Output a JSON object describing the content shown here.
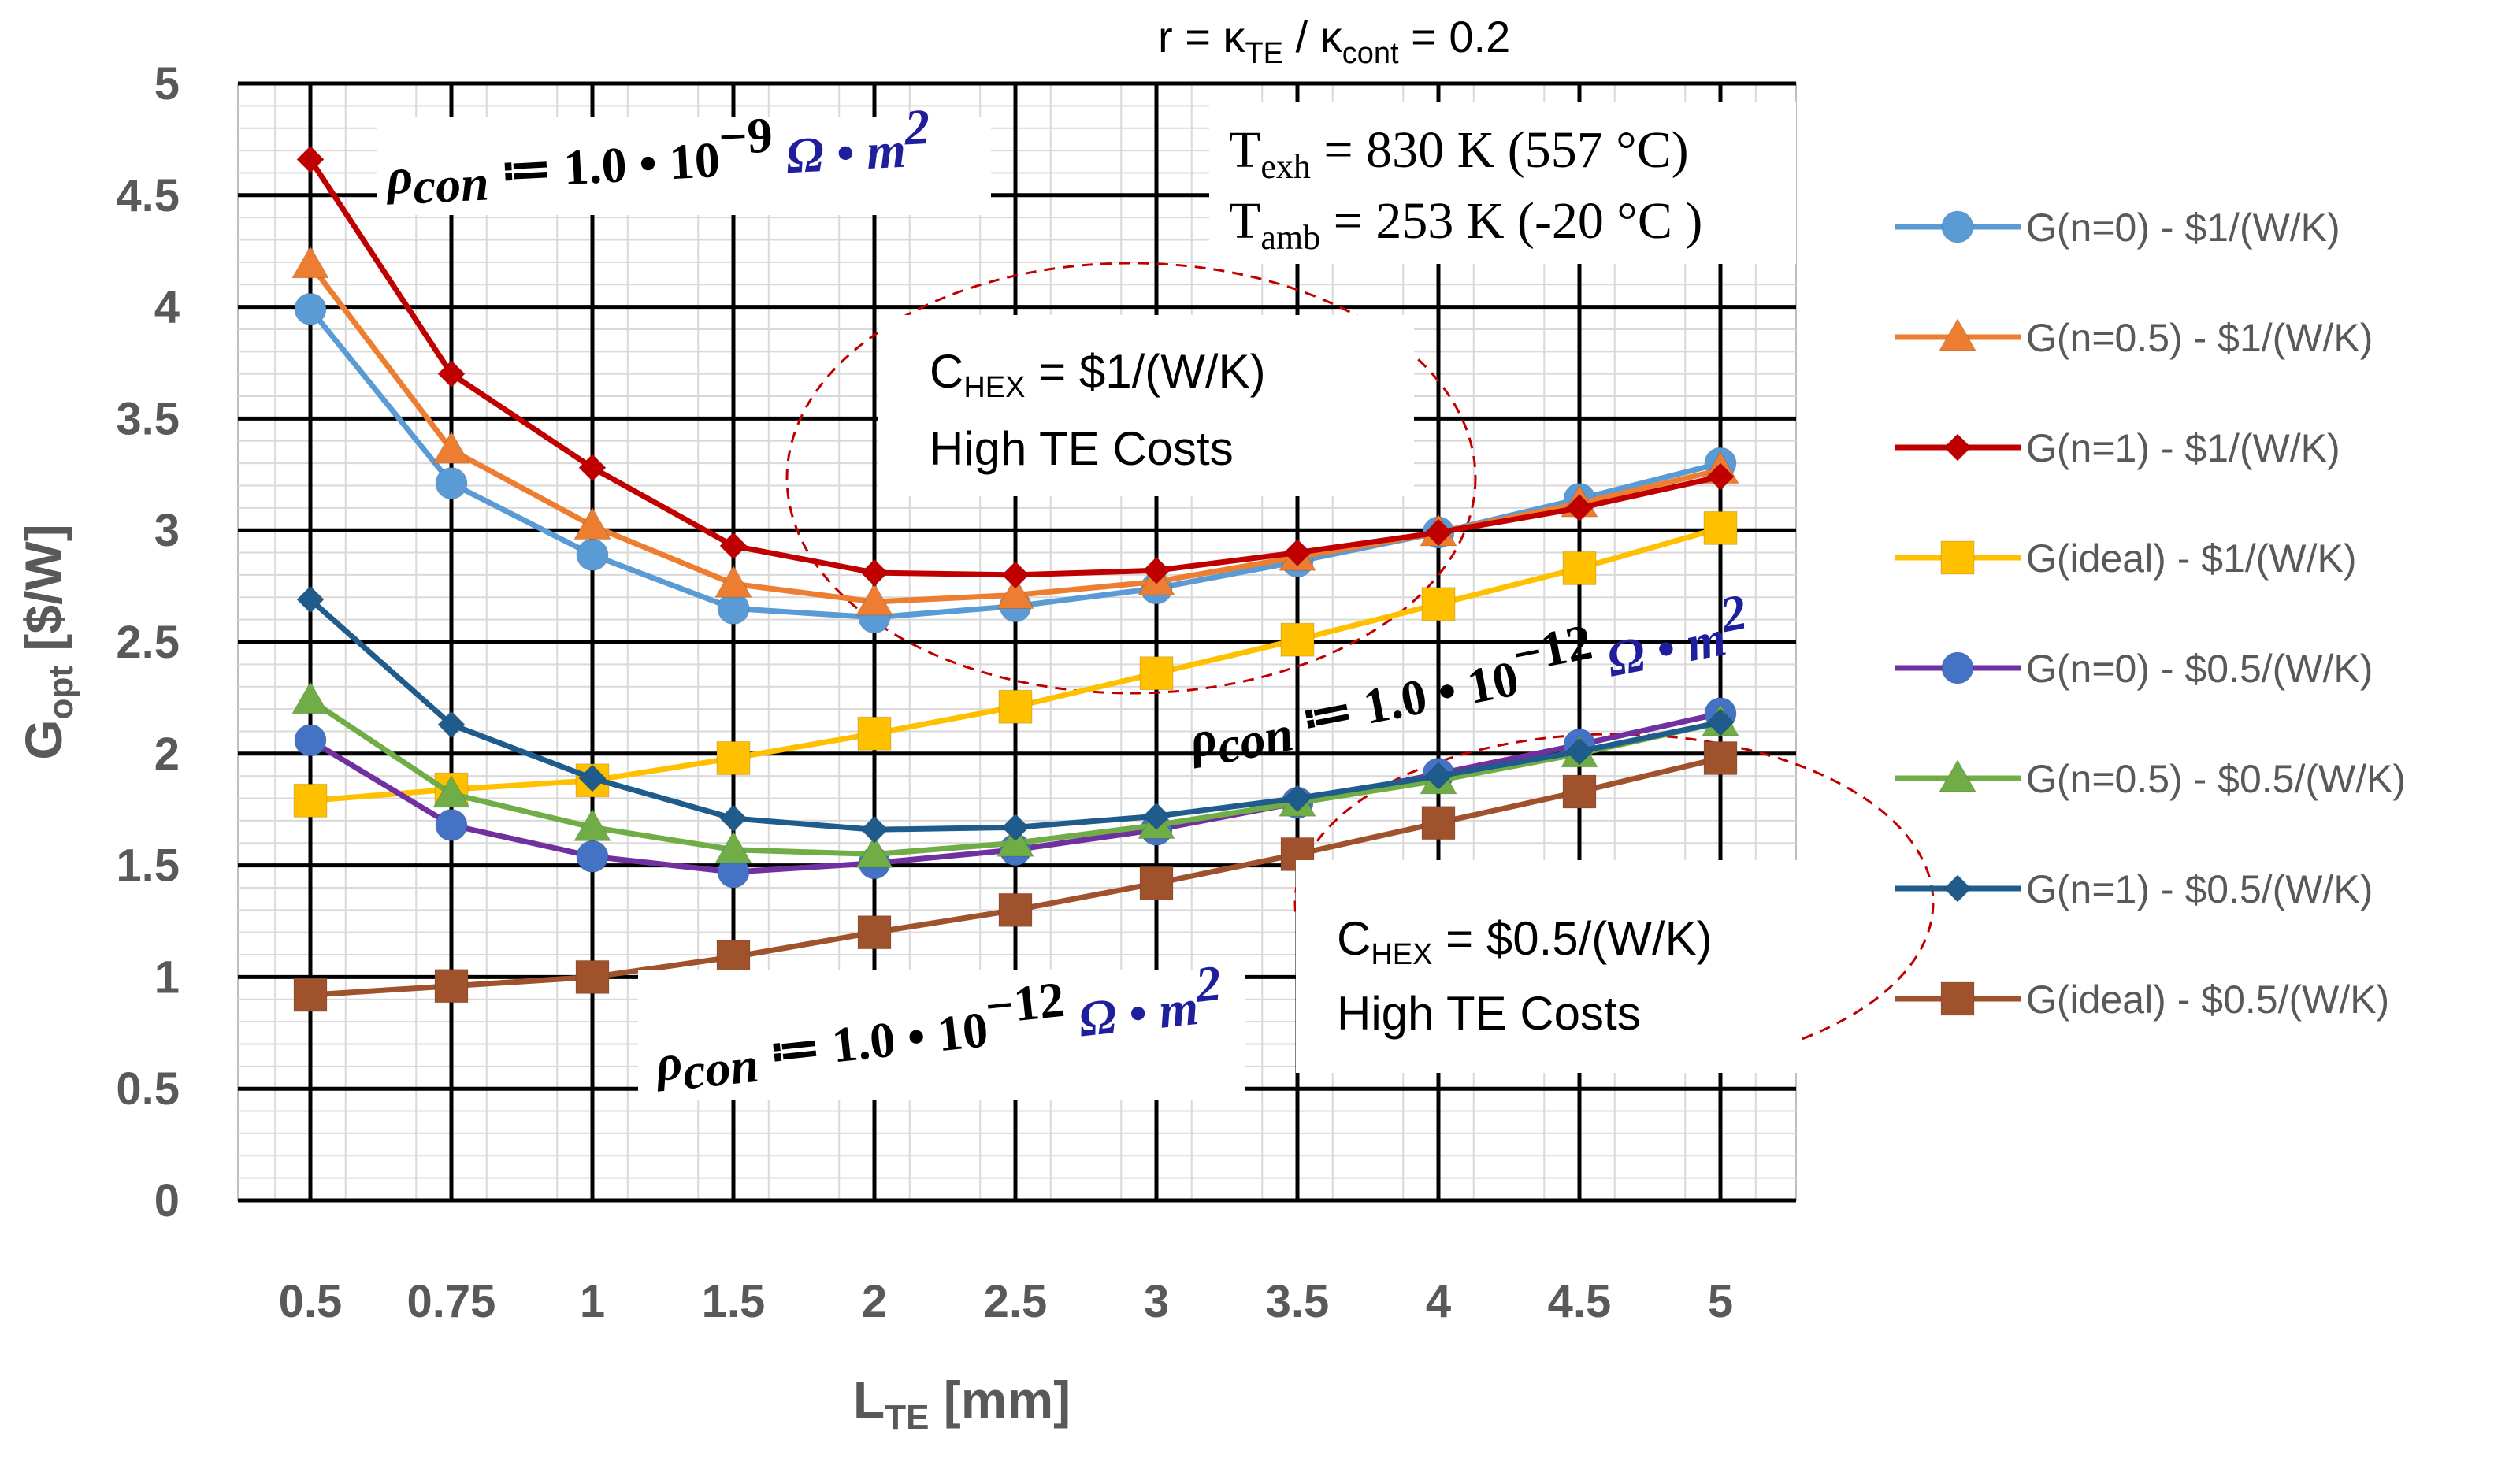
{
  "chart_data": {
    "type": "line",
    "categories": [
      "0.5",
      "0.75",
      "1",
      "1.5",
      "2",
      "2.5",
      "3",
      "3.5",
      "4",
      "4.5",
      "5"
    ],
    "xlabel": "L",
    "xlabel_sub": "TE",
    "xlabel_unit": " [mm]",
    "ylabel": "G",
    "ylabel_sub": "opt",
    "ylabel_unit": " [$/W]",
    "ylim": [
      0,
      5
    ],
    "yticks": [
      "0",
      "0.5",
      "1",
      "1.5",
      "2",
      "2.5",
      "3",
      "3.5",
      "4",
      "4.5",
      "5"
    ],
    "series": [
      {
        "name": "G(n=0) - $1/(W/K)",
        "color": "#5b9bd5",
        "marker": "circle",
        "values": [
          3.99,
          3.21,
          2.89,
          2.65,
          2.61,
          2.66,
          2.74,
          2.86,
          2.99,
          3.14,
          3.3
        ]
      },
      {
        "name": "G(n=0.5) - $1/(W/K)",
        "color": "#ed7d31",
        "marker": "triangle",
        "values": [
          4.19,
          3.36,
          3.02,
          2.76,
          2.68,
          2.71,
          2.77,
          2.88,
          2.99,
          3.12,
          3.27
        ]
      },
      {
        "name": "G(n=1) - $1/(W/K)",
        "color": "#c00000",
        "marker": "diamond",
        "values": [
          4.66,
          3.7,
          3.28,
          2.93,
          2.81,
          2.8,
          2.82,
          2.9,
          2.99,
          3.1,
          3.24
        ]
      },
      {
        "name": "G(ideal) - $1/(W/K)",
        "color": "#ffc000",
        "marker": "square",
        "values": [
          1.79,
          1.84,
          1.88,
          1.98,
          2.09,
          2.21,
          2.36,
          2.51,
          2.67,
          2.83,
          3.01
        ]
      },
      {
        "name": "G(n=0) - $0.5/(W/K)",
        "color": "#7030a0",
        "marker": "circle",
        "markerColor": "#4472c4",
        "values": [
          2.06,
          1.68,
          1.54,
          1.47,
          1.51,
          1.57,
          1.66,
          1.78,
          1.91,
          2.04,
          2.18
        ]
      },
      {
        "name": "G(n=0.5) - $0.5/(W/K)",
        "color": "#70ad47",
        "marker": "triangle",
        "values": [
          2.24,
          1.82,
          1.67,
          1.57,
          1.55,
          1.6,
          1.68,
          1.78,
          1.88,
          2.0,
          2.14
        ]
      },
      {
        "name": "G(n=1) - $0.5/(W/K)",
        "color": "#1f5c8c",
        "marker": "diamond",
        "values": [
          2.69,
          2.13,
          1.89,
          1.71,
          1.66,
          1.67,
          1.72,
          1.8,
          1.9,
          2.01,
          2.14
        ]
      },
      {
        "name": "G(ideal) - $0.5/(W/K)",
        "color": "#a0522d",
        "marker": "square",
        "values": [
          0.92,
          0.96,
          1.0,
          1.09,
          1.2,
          1.3,
          1.42,
          1.55,
          1.69,
          1.83,
          1.98
        ]
      }
    ],
    "annotations": {
      "ratio": {
        "lead": "r = κ",
        "sub1": "TE",
        "mid": " / κ",
        "sub2": "cont",
        "tail": " = 0.2"
      },
      "texh": {
        "lead": "T",
        "sub": "exh",
        "tail": " = 830 K (557 °C)"
      },
      "tamb": {
        "lead": "T",
        "sub": "amb",
        "tail": " = 253 K (-20 °C )"
      },
      "box1": {
        "lead": "C",
        "sub": "HEX",
        "tail": " = $1/(W/K)",
        "line2": "High TE Costs"
      },
      "box2": {
        "lead": "C",
        "sub": "HEX",
        "tail": " = $0.5/(W/K)",
        "line2": "High TE Costs"
      },
      "rho1": {
        "lead": "ρ",
        "sub": "con",
        "mid": " ≔ 1.0 • 10",
        "exp": "−9",
        "unit": " Ω • m",
        "unit_exp": "2"
      },
      "rho2": {
        "lead": "ρ",
        "sub": "con",
        "mid": " ≔ 1.0 • 10",
        "exp": "−12",
        "unit": " Ω • m",
        "unit_exp": "2"
      },
      "rho3": {
        "lead": "ρ",
        "sub": "con",
        "mid": " ≔ 1.0 • 10",
        "exp": "−12",
        "unit": " Ω • m",
        "unit_exp": "2"
      }
    }
  }
}
